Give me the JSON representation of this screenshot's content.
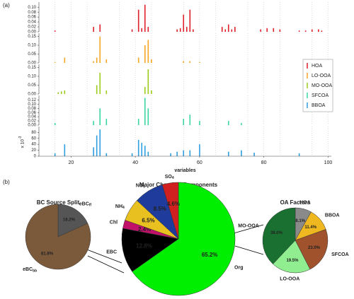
{
  "panel_labels": [
    "(a)",
    "(b)"
  ],
  "chart_data": [
    {
      "type": "stick",
      "xlabel": "variables",
      "xlim": [
        10,
        101
      ],
      "xticks": [
        20,
        40,
        60,
        80,
        100
      ],
      "x_minor_ticks": [
        15,
        25,
        35,
        45,
        55,
        65,
        75,
        85,
        95
      ],
      "grid": true,
      "legend": "right",
      "panels": [
        {
          "ylim": [
            0,
            0.115
          ],
          "yticks": [
            {
              "value": 0,
              "label": "0.00"
            },
            {
              "value": 0.02,
              "label": "0.02"
            },
            {
              "value": 0.04,
              "label": "0.04"
            },
            {
              "value": 0.06,
              "label": "0.06"
            },
            {
              "value": 0.08,
              "label": "0.08"
            },
            {
              "value": 0.1,
              "label": "0.10"
            }
          ],
          "series": {
            "name": "HOA",
            "color": "#e0202a",
            "x": [
              15,
              27,
              29,
              39,
              41,
              42,
              43,
              44,
              53,
              54,
              55,
              56,
              57,
              58,
              67,
              68,
              69,
              70,
              71,
              79,
              81,
              83,
              85,
              91,
              93,
              95,
              97,
              98
            ],
            "values": [
              0.005,
              0.02,
              0.03,
              0.01,
              0.09,
              0.015,
              0.11,
              0.02,
              0.01,
              0.015,
              0.07,
              0.02,
              0.09,
              0.01,
              0.02,
              0.01,
              0.03,
              0.01,
              0.02,
              0.01,
              0.015,
              0.015,
              0.01,
              0.005,
              0.005,
              0.01,
              0.01,
              0.005
            ]
          }
        },
        {
          "ylim": [
            0,
            0.16
          ],
          "yticks": [
            {
              "value": 0,
              "label": "0.00"
            },
            {
              "value": 0.05,
              "label": "0.05"
            },
            {
              "value": 0.1,
              "label": "0.10"
            },
            {
              "value": 0.15,
              "label": "0.15"
            }
          ],
          "series": {
            "name": "LO-OOA",
            "color": "#f5a623",
            "x": [
              15,
              18,
              27,
              28,
              29,
              31,
              41,
              43,
              44,
              45,
              55,
              57,
              60
            ],
            "values": [
              0.005,
              0.03,
              0.01,
              0.03,
              0.15,
              0.02,
              0.03,
              0.1,
              0.13,
              0.02,
              0.01,
              0.01,
              0.005
            ]
          }
        },
        {
          "ylim": [
            0,
            0.16
          ],
          "yticks": [
            {
              "value": 0,
              "label": "0.00"
            },
            {
              "value": 0.05,
              "label": "0.05"
            },
            {
              "value": 0.1,
              "label": "0.10"
            },
            {
              "value": 0.15,
              "label": "0.15"
            }
          ],
          "series": {
            "name": "MO-OOA",
            "color": "#9ccc1c",
            "x": [
              16,
              17,
              18,
              28,
              29,
              31,
              43,
              44,
              45
            ],
            "values": [
              0.01,
              0.015,
              0.02,
              0.05,
              0.12,
              0.02,
              0.04,
              0.14,
              0.02
            ]
          }
        },
        {
          "ylim": [
            0,
            0.135
          ],
          "yticks": [
            {
              "value": 0,
              "label": "0.00"
            },
            {
              "value": 0.02,
              "label": "0.02"
            },
            {
              "value": 0.04,
              "label": "0.04"
            },
            {
              "value": 0.06,
              "label": "0.06"
            },
            {
              "value": 0.08,
              "label": "0.08"
            },
            {
              "value": 0.1,
              "label": "0.10"
            },
            {
              "value": 0.12,
              "label": "0.12"
            }
          ],
          "series": {
            "name": "SFCOA",
            "color": "#3ad6a0",
            "x": [
              15,
              27,
              29,
              31,
              41,
              43,
              44,
              55,
              57,
              60,
              69,
              73
            ],
            "values": [
              0.01,
              0.02,
              0.08,
              0.03,
              0.03,
              0.13,
              0.08,
              0.03,
              0.05,
              0.02,
              0.02,
              0.01
            ]
          }
        },
        {
          "ylim": [
            0,
            95
          ],
          "yticks": [
            0,
            20,
            40,
            60,
            80
          ],
          "y_scale_label": "x 10",
          "y_scale_exponent": "-3",
          "series": {
            "name": "BBOA",
            "color": "#2f9fe0",
            "x": [
              15,
              18,
              27,
              28,
              29,
              31,
              39,
              41,
              42,
              43,
              44,
              51,
              53,
              55,
              57,
              60,
              69,
              73,
              77,
              91
            ],
            "values": [
              10,
              40,
              30,
              70,
              90,
              10,
              10,
              55,
              45,
              35,
              15,
              10,
              15,
              20,
              20,
              40,
              15,
              20,
              12,
              10
            ]
          }
        }
      ]
    },
    {
      "type": "pie",
      "title": "BC Source Split",
      "categories": [
        "eBC",
        "eBC"
      ],
      "category_subscripts": [
        "ff",
        "bb"
      ],
      "values": [
        18.2,
        81.8
      ],
      "value_labels": [
        "18.2%",
        "81.8%"
      ],
      "colors": [
        "#555555",
        "#7b5a3c"
      ]
    },
    {
      "type": "pie",
      "title": "Major Chemical Components",
      "categories": [
        "Org",
        "EBC",
        "Chl",
        "NH",
        "NO",
        "SO"
      ],
      "category_subscripts": [
        null,
        null,
        null,
        "4",
        "3",
        "4"
      ],
      "values": [
        65.2,
        12.8,
        2.4,
        6.5,
        8.5,
        4.6
      ],
      "value_labels": [
        "65.2%",
        "12.8%",
        "2.4%",
        "6.5%",
        "8.5%",
        "4.6%"
      ],
      "colors": [
        "#00ee00",
        "#000000",
        "#c0106a",
        "#e8c020",
        "#1f3c9c",
        "#d02020"
      ]
    },
    {
      "type": "pie",
      "title": "OA Factors",
      "categories": [
        "HOA",
        "BBOA",
        "SFCOA",
        "LO-OOA",
        "MO-OOA"
      ],
      "values": [
        8.1,
        11.4,
        23.0,
        19.5,
        38.0
      ],
      "value_labels": [
        "8.1%",
        "11.4%",
        "23.0%",
        "19.5%",
        "38.0%"
      ],
      "colors": [
        "#8a8a8a",
        "#f0b820",
        "#a0522d",
        "#90ee90",
        "#1a7030"
      ]
    }
  ]
}
